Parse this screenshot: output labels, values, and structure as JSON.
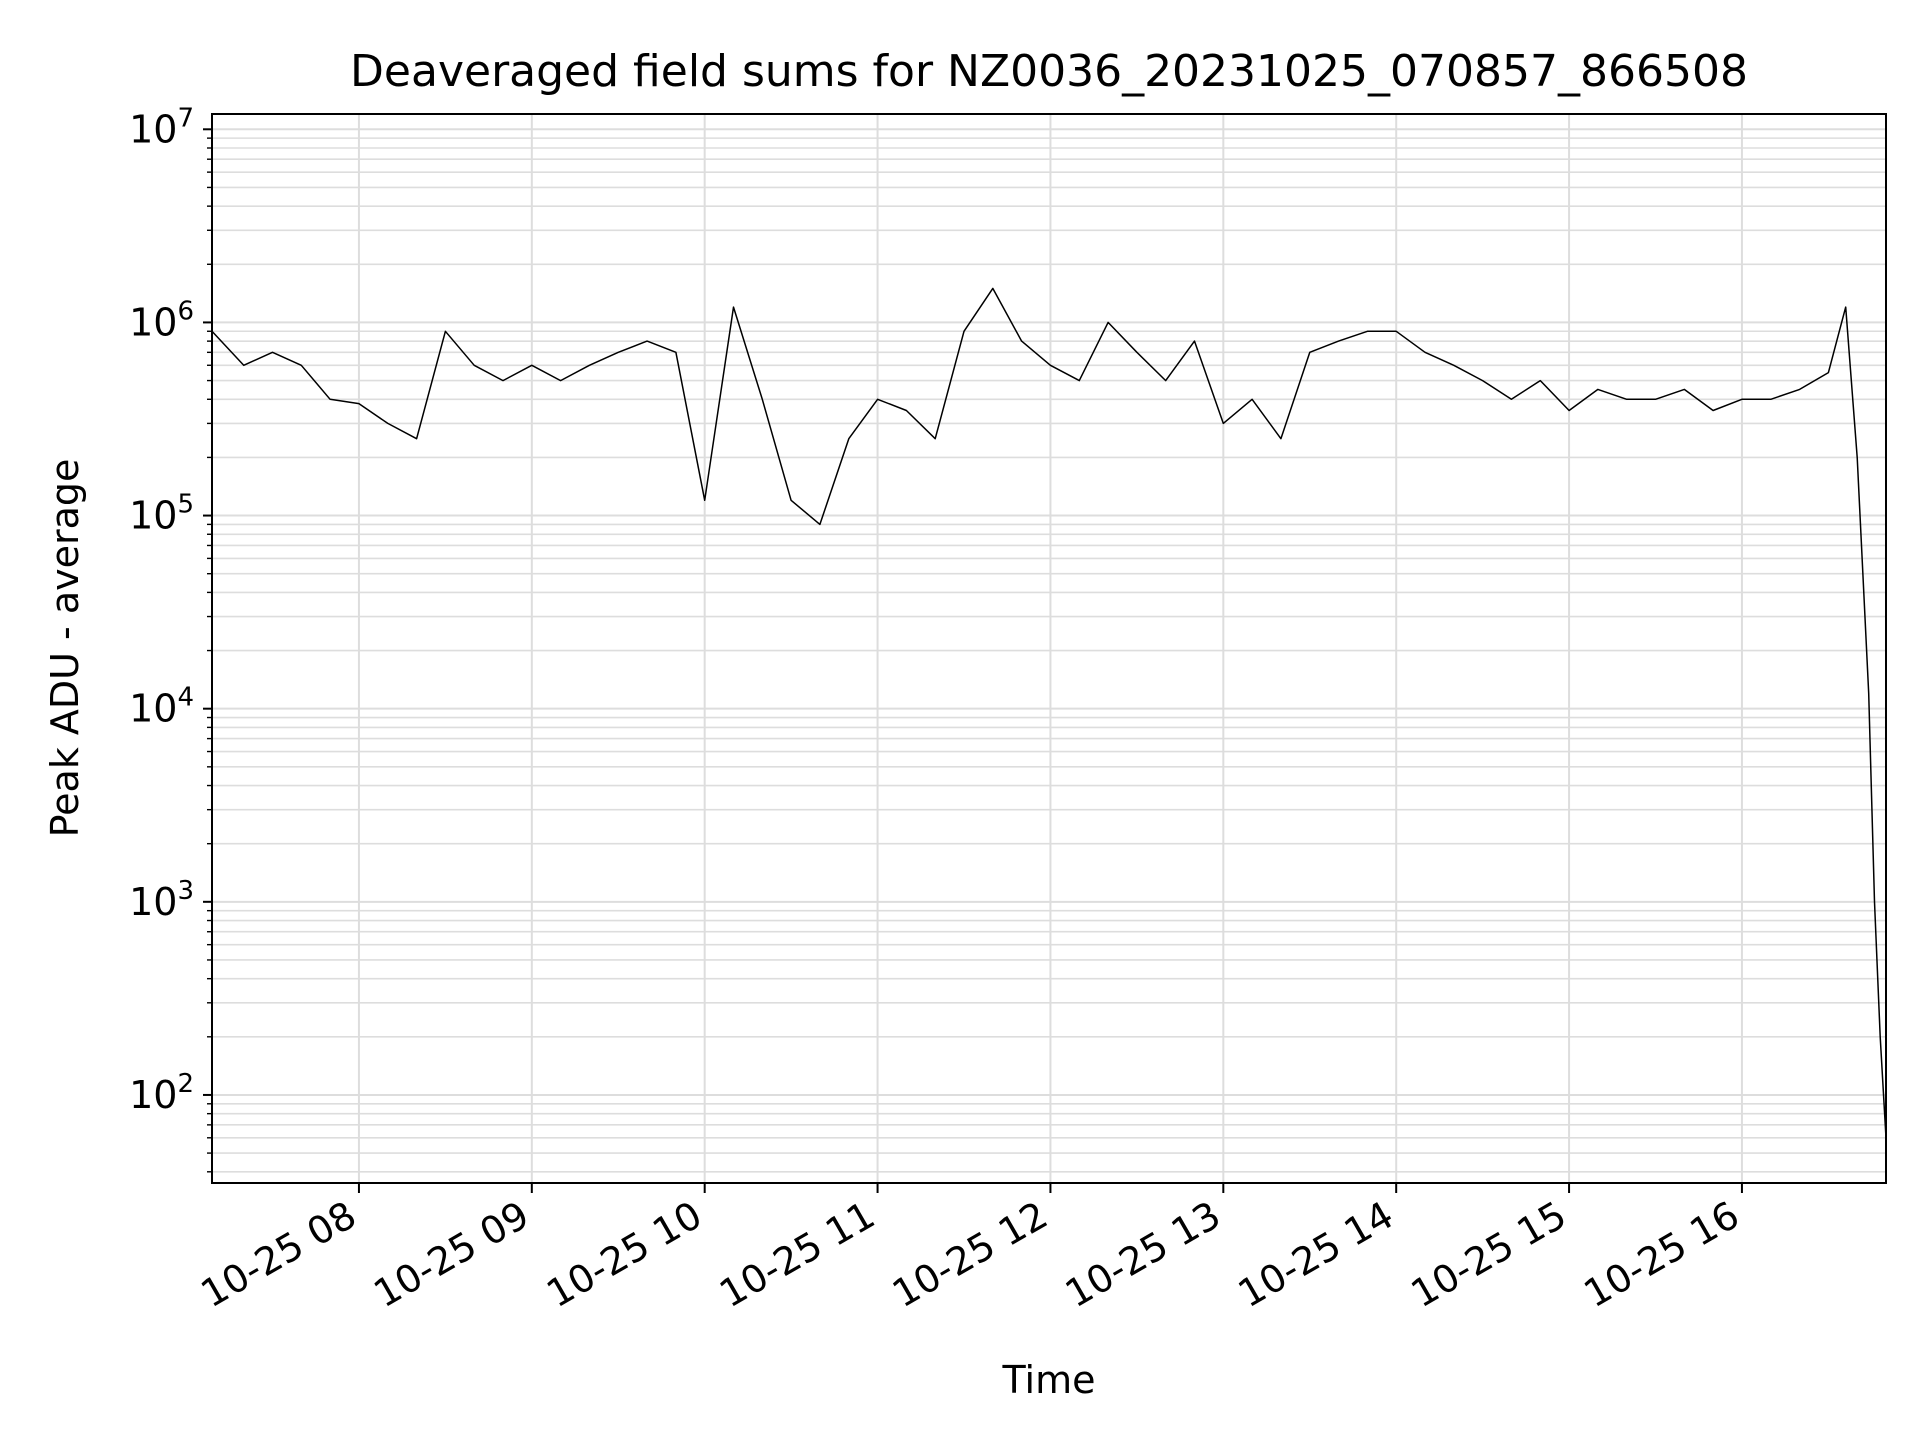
{
  "chart_data": {
    "type": "line",
    "title": "Deaveraged field sums for NZ0036_20231025_070857_866508",
    "xlabel": "Time",
    "ylabel": "Peak ADU - average",
    "yscale": "log",
    "ylim": [
      35,
      12000000
    ],
    "xlim": [
      "2023-10-25 07:09",
      "2023-10-25 16:50"
    ],
    "grid": true,
    "line_color": "#000000",
    "x_tick_labels": [
      "10-25 08",
      "10-25 09",
      "10-25 10",
      "10-25 11",
      "10-25 12",
      "10-25 13",
      "10-25 14",
      "10-25 15",
      "10-25 16"
    ],
    "y_tick_labels": [
      {
        "base": "10",
        "exp": "2"
      },
      {
        "base": "10",
        "exp": "3"
      },
      {
        "base": "10",
        "exp": "4"
      },
      {
        "base": "10",
        "exp": "5"
      },
      {
        "base": "10",
        "exp": "6"
      },
      {
        "base": "10",
        "exp": "7"
      }
    ],
    "series": [
      {
        "x": [
          "2023-10-25 07:09",
          "2023-10-25 07:20",
          "2023-10-25 07:30",
          "2023-10-25 07:40",
          "2023-10-25 07:50",
          "2023-10-25 08:00",
          "2023-10-25 08:10",
          "2023-10-25 08:20",
          "2023-10-25 08:30",
          "2023-10-25 08:40",
          "2023-10-25 08:50",
          "2023-10-25 09:00",
          "2023-10-25 09:10",
          "2023-10-25 09:20",
          "2023-10-25 09:30",
          "2023-10-25 09:40",
          "2023-10-25 09:50",
          "2023-10-25 10:00",
          "2023-10-25 10:10",
          "2023-10-25 10:20",
          "2023-10-25 10:30",
          "2023-10-25 10:40",
          "2023-10-25 10:50",
          "2023-10-25 11:00",
          "2023-10-25 11:10",
          "2023-10-25 11:20",
          "2023-10-25 11:30",
          "2023-10-25 11:40",
          "2023-10-25 11:50",
          "2023-10-25 12:00",
          "2023-10-25 12:10",
          "2023-10-25 12:20",
          "2023-10-25 12:30",
          "2023-10-25 12:40",
          "2023-10-25 12:50",
          "2023-10-25 13:00",
          "2023-10-25 13:10",
          "2023-10-25 13:20",
          "2023-10-25 13:30",
          "2023-10-25 13:40",
          "2023-10-25 13:50",
          "2023-10-25 14:00",
          "2023-10-25 14:10",
          "2023-10-25 14:20",
          "2023-10-25 14:30",
          "2023-10-25 14:40",
          "2023-10-25 14:50",
          "2023-10-25 15:00",
          "2023-10-25 15:10",
          "2023-10-25 15:20",
          "2023-10-25 15:30",
          "2023-10-25 15:40",
          "2023-10-25 15:50",
          "2023-10-25 16:00",
          "2023-10-25 16:10",
          "2023-10-25 16:20",
          "2023-10-25 16:30",
          "2023-10-25 16:36",
          "2023-10-25 16:40",
          "2023-10-25 16:44",
          "2023-10-25 16:46",
          "2023-10-25 16:48",
          "2023-10-25 16:50"
        ],
        "y": [
          900000,
          600000,
          700000,
          600000,
          400000,
          380000,
          300000,
          250000,
          900000,
          600000,
          500000,
          600000,
          500000,
          600000,
          700000,
          800000,
          700000,
          120000,
          1200000,
          400000,
          120000,
          90000,
          250000,
          400000,
          350000,
          250000,
          900000,
          1500000,
          800000,
          600000,
          500000,
          1000000,
          700000,
          500000,
          800000,
          300000,
          400000,
          250000,
          700000,
          800000,
          900000,
          900000,
          700000,
          600000,
          500000,
          400000,
          500000,
          350000,
          450000,
          400000,
          400000,
          450000,
          350000,
          400000,
          400000,
          450000,
          550000,
          1200000,
          200000,
          12000,
          1000,
          200,
          60
        ]
      }
    ]
  }
}
